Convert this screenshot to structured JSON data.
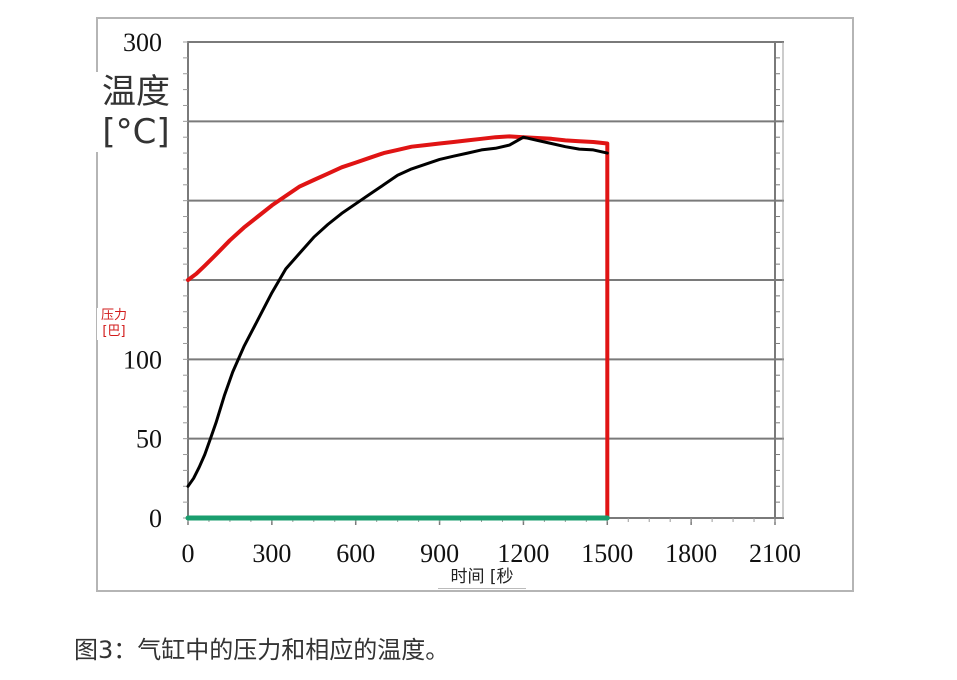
{
  "chart_data": {
    "type": "line",
    "xlabel": "时间 [秒",
    "ylabel": "温度 [°C]",
    "ylabel_secondary": "压力 [巴]",
    "caption": "图3：气缸中的压力和相应的温度。",
    "x_ticks": [
      "0",
      "300",
      "600",
      "900",
      "1200",
      "1500",
      "1800",
      "2100"
    ],
    "y_ticks": [
      "0",
      "50",
      "100",
      "150",
      "200",
      "250",
      "300"
    ],
    "y_tick_labels_visible": [
      "0",
      "50",
      "100",
      "300"
    ],
    "y_tick_labels_shown": {
      "0": "0",
      "50": "50",
      "100": "100",
      "300": "300"
    },
    "xlim": [
      0,
      2100
    ],
    "ylim": [
      0,
      300
    ],
    "grid": "horizontal",
    "series": [
      {
        "color": "#e01414",
        "x": [
          0,
          30,
          60,
          100,
          150,
          200,
          250,
          300,
          350,
          400,
          450,
          500,
          550,
          600,
          650,
          700,
          750,
          800,
          850,
          900,
          950,
          1000,
          1050,
          1100,
          1150,
          1200,
          1250,
          1300,
          1350,
          1400,
          1450,
          1500,
          1500
        ],
        "y": [
          150,
          154,
          159,
          166,
          175,
          183,
          190,
          197,
          203,
          209,
          213,
          217,
          221,
          224,
          227,
          230,
          232,
          234,
          235,
          236,
          237,
          238,
          239,
          240,
          240.5,
          240,
          239.5,
          239,
          238,
          237.5,
          237,
          236,
          0
        ]
      },
      {
        "color": "#000000",
        "x": [
          0,
          20,
          40,
          60,
          80,
          100,
          130,
          160,
          200,
          250,
          300,
          350,
          400,
          450,
          500,
          550,
          600,
          650,
          700,
          750,
          800,
          850,
          900,
          950,
          1000,
          1050,
          1100,
          1150,
          1200,
          1250,
          1300,
          1350,
          1400,
          1450,
          1500
        ],
        "y": [
          20,
          25,
          32,
          40,
          50,
          60,
          77,
          92,
          108,
          125,
          142,
          157,
          167,
          177,
          185,
          192,
          198,
          204,
          210,
          216,
          220,
          223,
          226,
          228,
          230,
          232,
          233,
          235,
          240,
          238,
          236,
          234,
          232.5,
          232,
          230
        ]
      },
      {
        "color": "#1a9e6e",
        "x": [
          0,
          1500
        ],
        "y": [
          0,
          0
        ]
      }
    ]
  }
}
